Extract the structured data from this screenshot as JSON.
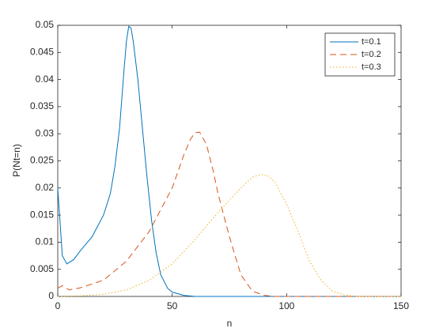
{
  "chart_data": {
    "type": "line",
    "xlabel": "n",
    "ylabel": "P(Nt=n)",
    "xlim": [
      0,
      150
    ],
    "ylim": [
      0,
      0.05
    ],
    "xticks": [
      0,
      50,
      100,
      150
    ],
    "yticks": [
      0,
      0.005,
      0.01,
      0.015,
      0.02,
      0.025,
      0.03,
      0.035,
      0.04,
      0.045,
      0.05
    ],
    "legend": "northeast",
    "box": true,
    "series": [
      {
        "name": "t=0.1",
        "color": "#0072BD",
        "dash": "solid",
        "x": [
          0,
          2,
          4,
          7,
          10,
          15,
          20,
          23,
          25,
          27,
          29,
          30,
          31,
          32,
          33,
          35,
          37,
          39,
          41,
          43,
          45,
          48,
          50,
          55,
          60,
          150
        ],
        "values": [
          0.02,
          0.0075,
          0.006,
          0.0068,
          0.0085,
          0.011,
          0.015,
          0.019,
          0.024,
          0.031,
          0.042,
          0.047,
          0.0498,
          0.0495,
          0.047,
          0.04,
          0.031,
          0.022,
          0.014,
          0.008,
          0.004,
          0.0015,
          0.0008,
          0.0002,
          0,
          0
        ]
      },
      {
        "name": "t=0.2",
        "color": "#D95319",
        "dash": "dashed",
        "x": [
          0,
          2,
          5,
          10,
          20,
          30,
          40,
          50,
          55,
          58,
          60,
          62,
          65,
          68,
          70,
          75,
          80,
          85,
          90,
          95,
          150
        ],
        "values": [
          0.0015,
          0.002,
          0.0012,
          0.0016,
          0.003,
          0.0065,
          0.012,
          0.02,
          0.026,
          0.029,
          0.0302,
          0.0303,
          0.028,
          0.023,
          0.019,
          0.011,
          0.004,
          0.001,
          0.0002,
          0,
          0
        ]
      },
      {
        "name": "t=0.3",
        "color": "#EDB120",
        "dash": "dotted",
        "x": [
          0,
          10,
          20,
          30,
          40,
          50,
          60,
          70,
          80,
          85,
          89,
          92,
          95,
          100,
          105,
          110,
          115,
          120,
          125,
          130,
          150
        ],
        "values": [
          0,
          0.0001,
          0.0004,
          0.0012,
          0.003,
          0.006,
          0.0105,
          0.0155,
          0.02,
          0.022,
          0.0225,
          0.0222,
          0.021,
          0.017,
          0.012,
          0.0065,
          0.003,
          0.001,
          0.0003,
          0,
          0
        ]
      }
    ]
  }
}
